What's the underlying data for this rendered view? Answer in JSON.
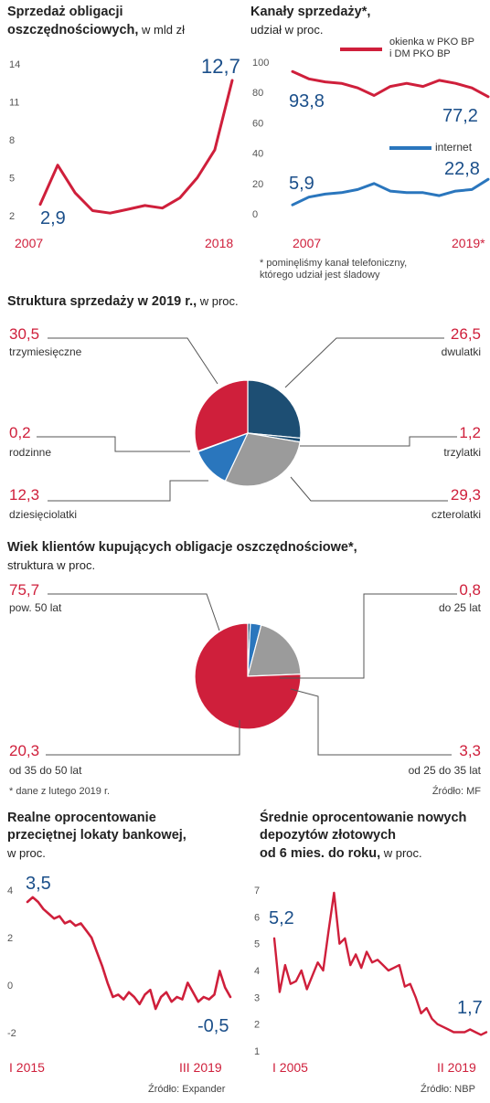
{
  "colors": {
    "red": "#cf1f3b",
    "navy": "#1d4e73",
    "blue": "#2a76bd",
    "grey": "#9b9b9b",
    "label_blue": "#1b4f8a"
  },
  "panel1": {
    "title_bold_1": "Sprzedaż obligacji",
    "title_bold_2": "oszczędnościowych,",
    "title_unit": " w mld zł",
    "start_value": "2,9",
    "end_value": "12,7",
    "x_start": "2007",
    "x_end": "2018"
  },
  "panel2": {
    "title_bold": "Kanały sprzedaży*,",
    "title_unit": "udział w proc.",
    "legend1_line1": "okienka w PKO BP",
    "legend1_line2": "i DM PKO BP",
    "legend2": "internet",
    "s1_start": "93,8",
    "s1_end": "77,2",
    "s2_start": "5,9",
    "s2_end": "22,8",
    "x_start": "2007",
    "x_end": "2019*",
    "footnote_1": "* pominęliśmy kanał telefoniczny,",
    "footnote_2": "którego udział jest śladowy"
  },
  "pie1": {
    "title_bold": "Struktura sprzedaży w 2019 r.,",
    "title_unit": " w proc."
  },
  "pie2": {
    "title_bold": "Wiek klientów kupujących obligacje oszczędnościowe*,",
    "title_unit": "struktura w proc.",
    "footnote": "* dane z lutego 2019 r.",
    "source": "Źródło: MF"
  },
  "panel5": {
    "title_1": "Realne oprocentowanie",
    "title_2": "przeciętnej lokaty bankowej,",
    "title_unit": "w proc.",
    "start_value": "3,5",
    "end_value": "-0,5",
    "x_start": "I 2015",
    "x_end": "III 2019",
    "source": "Źródło: Expander"
  },
  "panel6": {
    "title_1": "Średnie oprocentowanie nowych",
    "title_2": "depozytów złotowych",
    "title_3": "od 6 mies. do roku,",
    "title_unit": " w proc.",
    "start_value": "5,2",
    "end_value": "1,7",
    "x_start": "I 2005",
    "x_end": "II 2019",
    "source": "Źródło: NBP"
  },
  "chart_data": [
    {
      "type": "line",
      "title": "Sprzedaż obligacji oszczędnościowych, w mld zł",
      "x": [
        2007,
        2008,
        2009,
        2010,
        2011,
        2012,
        2013,
        2014,
        2015,
        2016,
        2017,
        2018
      ],
      "yticks": [
        "2",
        "5",
        "8",
        "11",
        "14"
      ],
      "ylim": [
        2,
        14
      ],
      "series": [
        {
          "values": [
            2.9,
            6.0,
            3.8,
            2.4,
            2.2,
            2.5,
            2.8,
            2.6,
            3.4,
            5.0,
            7.2,
            12.7
          ]
        }
      ]
    },
    {
      "type": "line",
      "title": "Kanały sprzedaży*, udział w proc.",
      "x": [
        2007,
        2008,
        2009,
        2010,
        2011,
        2012,
        2013,
        2014,
        2015,
        2016,
        2017,
        2018,
        2019
      ],
      "yticks": [
        "0",
        "20",
        "40",
        "60",
        "80",
        "100"
      ],
      "ylim": [
        0,
        100
      ],
      "series": [
        {
          "name": "okienka w PKO BP i DM PKO BP",
          "values": [
            93.8,
            89,
            87,
            86,
            83,
            78,
            84,
            86,
            84,
            88,
            86,
            83,
            77.2
          ]
        },
        {
          "name": "internet",
          "values": [
            5.9,
            11,
            13,
            14,
            16,
            20,
            15,
            14,
            14,
            12,
            15,
            16,
            22.8
          ]
        }
      ]
    },
    {
      "type": "pie",
      "title": "Struktura sprzedaży w 2019 r., w proc.",
      "slices": [
        {
          "label": "dwulatki",
          "value": 26.5,
          "display": "26,5",
          "color": "#1d4e73"
        },
        {
          "label": "trzylatki",
          "value": 1.2,
          "display": "1,2",
          "color": "#1d4e73"
        },
        {
          "label": "czterolatki",
          "value": 29.3,
          "display": "29,3",
          "color": "#9b9b9b"
        },
        {
          "label": "dziesięciolatki",
          "value": 12.3,
          "display": "12,3",
          "color": "#2a76bd"
        },
        {
          "label": "rodzinne",
          "value": 0.2,
          "display": "0,2",
          "color": "#2a76bd"
        },
        {
          "label": "trzymiesięczne",
          "value": 30.5,
          "display": "30,5",
          "color": "#cf1f3b"
        }
      ]
    },
    {
      "type": "pie",
      "title": "Wiek klientów kupujących obligacje oszczędnościowe*, struktura w proc.",
      "slices": [
        {
          "label": "do 25 lat",
          "value": 0.8,
          "display": "0,8",
          "color": "#1d4e73"
        },
        {
          "label": "od 25 do 35 lat",
          "value": 3.3,
          "display": "3,3",
          "color": "#2a76bd"
        },
        {
          "label": "od 35 do 50 lat",
          "value": 20.3,
          "display": "20,3",
          "color": "#9b9b9b"
        },
        {
          "label": "pow. 50 lat",
          "value": 75.7,
          "display": "75,7",
          "color": "#cf1f3b"
        }
      ]
    },
    {
      "type": "line",
      "title": "Realne oprocentowanie przeciętnej lokaty bankowej, w proc.",
      "x_range": [
        "I 2015",
        "III 2019"
      ],
      "yticks": [
        "-2",
        "0",
        "2",
        "4"
      ],
      "ylim": [
        -2,
        4
      ],
      "series": [
        {
          "values": [
            3.5,
            3.7,
            3.5,
            3.2,
            3.0,
            2.8,
            2.9,
            2.6,
            2.7,
            2.5,
            2.6,
            2.3,
            2.0,
            1.4,
            0.8,
            0.1,
            -0.5,
            -0.4,
            -0.6,
            -0.3,
            -0.5,
            -0.8,
            -0.4,
            -0.2,
            -1.0,
            -0.5,
            -0.3,
            -0.7,
            -0.5,
            -0.6,
            0.1,
            -0.3,
            -0.7,
            -0.5,
            -0.6,
            -0.4,
            0.6,
            -0.1,
            -0.5
          ]
        }
      ]
    },
    {
      "type": "line",
      "title": "Średnie oprocentowanie nowych depozytów złotowych od 6 mies. do roku, w proc.",
      "x_range": [
        "I 2005",
        "II 2019"
      ],
      "yticks": [
        "1",
        "2",
        "3",
        "4",
        "5",
        "6",
        "7"
      ],
      "ylim": [
        1,
        7
      ],
      "series": [
        {
          "values": [
            5.2,
            3.2,
            4.2,
            3.5,
            3.6,
            4.0,
            3.3,
            3.8,
            4.3,
            4.0,
            5.5,
            6.9,
            5.0,
            5.2,
            4.2,
            4.6,
            4.1,
            4.7,
            4.3,
            4.4,
            4.2,
            4.0,
            4.1,
            4.2,
            3.4,
            3.5,
            3.0,
            2.4,
            2.6,
            2.2,
            2.0,
            1.9,
            1.8,
            1.7,
            1.7,
            1.7,
            1.8,
            1.7,
            1.6,
            1.7
          ]
        }
      ]
    }
  ]
}
